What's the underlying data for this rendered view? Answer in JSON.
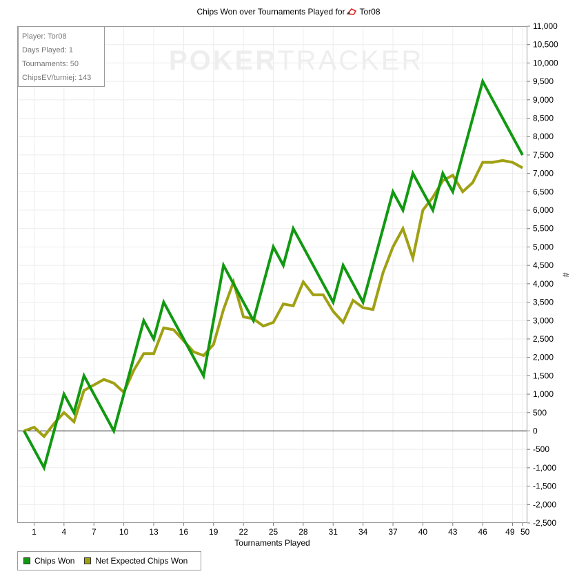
{
  "title": "Chips Won over Tournaments Played for",
  "player_name": "Tor08",
  "info": {
    "player": "Player: Tor08",
    "days": "Days Played: 1",
    "tournaments": "Tournaments: 50",
    "chipsev": "ChipsEV/turniej: 143"
  },
  "watermark": {
    "bold": "POKER",
    "light": "TRACKER"
  },
  "colors": {
    "chips_won": "#119911",
    "expected": "#a0a013",
    "grid": "#ececec",
    "zero_line": "#000000"
  },
  "chart_data": {
    "type": "line",
    "title": "Chips Won over Tournaments Played for Tor08",
    "xlabel": "Tournaments Played",
    "ylabel": "#",
    "xlim": [
      0,
      50
    ],
    "ylim": [
      -2500,
      11000
    ],
    "x_ticks": [
      1,
      4,
      7,
      10,
      13,
      16,
      19,
      22,
      25,
      28,
      31,
      34,
      37,
      40,
      43,
      46,
      49,
      50
    ],
    "y_ticks": [
      11000,
      10500,
      10000,
      9500,
      9000,
      8500,
      8000,
      7500,
      7000,
      6500,
      6000,
      5500,
      5000,
      4500,
      4000,
      3500,
      3000,
      2500,
      2000,
      1500,
      1000,
      500,
      0,
      -500,
      -1000,
      -1500,
      -2000,
      -2500
    ],
    "y_tick_labels": [
      "11,000",
      "10,500",
      "10,000",
      "9,500",
      "9,000",
      "8,500",
      "8,000",
      "7,500",
      "7,000",
      "6,500",
      "6,000",
      "5,500",
      "5,000",
      "4,500",
      "4,000",
      "3,500",
      "3,000",
      "2,500",
      "2,000",
      "1,500",
      "1,000",
      "500",
      "0",
      "-500",
      "-1,000",
      "-1,500",
      "-2,000",
      "-2,500"
    ],
    "grid": true,
    "legend_position": "bottom-left",
    "x": [
      0,
      1,
      2,
      3,
      4,
      5,
      6,
      7,
      8,
      9,
      10,
      11,
      12,
      13,
      14,
      15,
      16,
      17,
      18,
      19,
      20,
      21,
      22,
      23,
      24,
      25,
      26,
      27,
      28,
      29,
      30,
      31,
      32,
      33,
      34,
      35,
      36,
      37,
      38,
      39,
      40,
      41,
      42,
      43,
      44,
      45,
      46,
      47,
      48,
      49,
      50
    ],
    "series": [
      {
        "name": "Chips Won",
        "values": [
          0,
          -500,
          -1000,
          0,
          1000,
          500,
          1500,
          1000,
          500,
          0,
          1000,
          2000,
          3000,
          2500,
          3500,
          3000,
          2500,
          2000,
          1500,
          3000,
          4500,
          4000,
          3500,
          3000,
          4000,
          5000,
          4500,
          5500,
          5000,
          4500,
          4000,
          3500,
          4500,
          4000,
          3500,
          4500,
          5500,
          6500,
          6000,
          7000,
          6500,
          6000,
          7000,
          6500,
          7500,
          8500,
          9500,
          9000,
          8500,
          8000,
          7500
        ]
      },
      {
        "name": "Net Expected Chips Won",
        "values": [
          0,
          100,
          -150,
          200,
          500,
          250,
          1100,
          1250,
          1400,
          1300,
          1050,
          1650,
          2100,
          2100,
          2800,
          2750,
          2450,
          2150,
          2050,
          2350,
          3300,
          4050,
          3100,
          3050,
          2850,
          2950,
          3450,
          3400,
          4050,
          3700,
          3700,
          3250,
          2950,
          3550,
          3350,
          3300,
          4300,
          5000,
          5500,
          4700,
          6000,
          6350,
          6800,
          6950,
          6500,
          6750,
          7300,
          7300,
          7350,
          7300,
          7150
        ]
      }
    ]
  },
  "legend": [
    {
      "label": "Chips Won",
      "color": "#119911"
    },
    {
      "label": "Net Expected Chips Won",
      "color": "#a0a013"
    }
  ]
}
